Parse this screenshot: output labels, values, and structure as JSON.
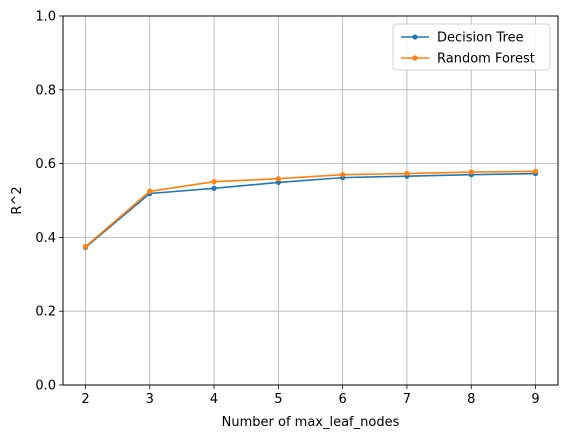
{
  "chart_data": {
    "type": "line",
    "xlabel": "Number of max_leaf_nodes",
    "ylabel": "R^2",
    "x": [
      2,
      3,
      4,
      5,
      6,
      7,
      8,
      9
    ],
    "xlim": [
      1.65,
      9.35
    ],
    "ylim": [
      0,
      1
    ],
    "xticks": [
      "2",
      "3",
      "4",
      "5",
      "6",
      "7",
      "8",
      "9"
    ],
    "yticks": [
      "0.0",
      "0.2",
      "0.4",
      "0.6",
      "0.8",
      "1.0"
    ],
    "grid": true,
    "legend_position": "top-right",
    "series": [
      {
        "name": "Decision Tree",
        "color": "#1f77b4",
        "marker": "circle",
        "values": [
          0.373,
          0.519,
          0.533,
          0.549,
          0.562,
          0.566,
          0.57,
          0.573
        ]
      },
      {
        "name": "Random Forest",
        "color": "#ff7f0e",
        "marker": "circle",
        "values": [
          0.375,
          0.525,
          0.551,
          0.559,
          0.57,
          0.573,
          0.577,
          0.579
        ]
      }
    ]
  }
}
